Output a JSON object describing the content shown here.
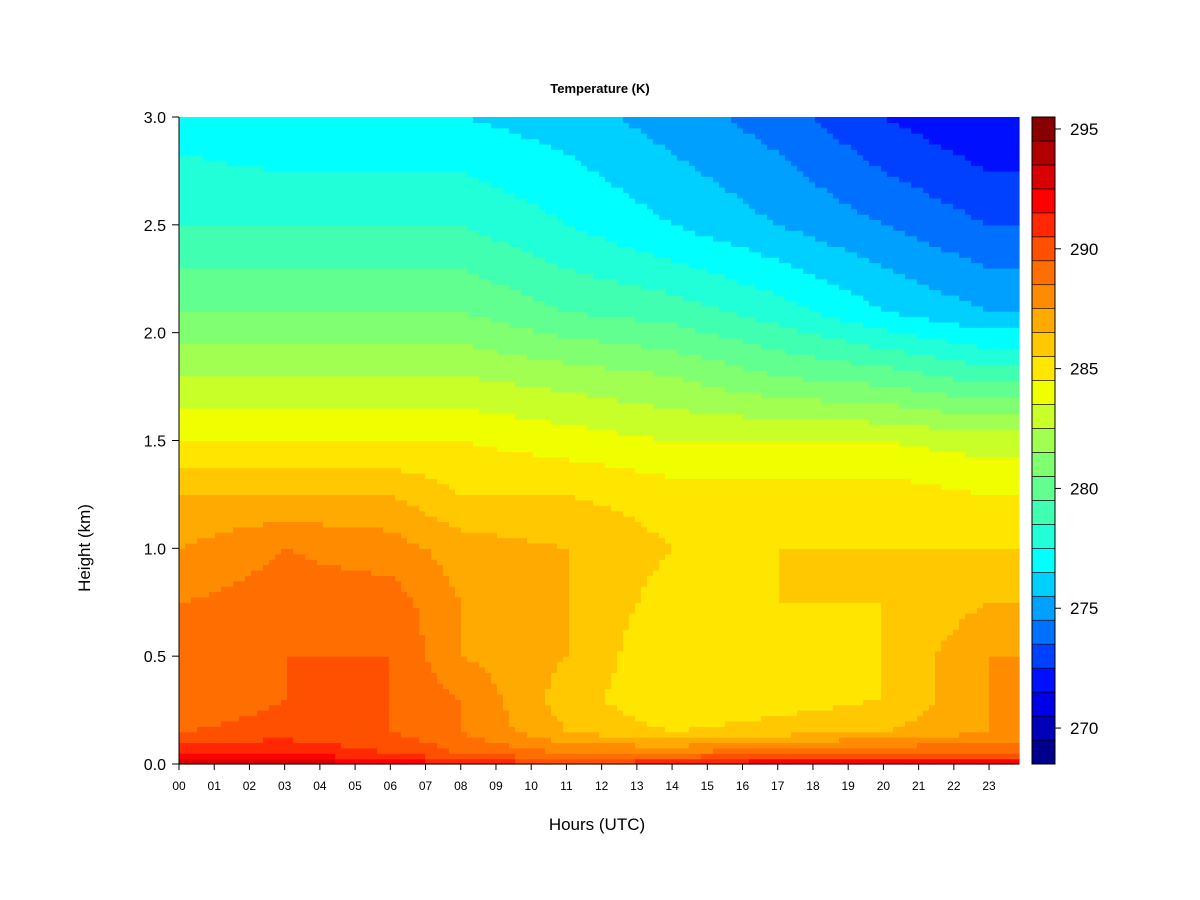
{
  "chart_data": {
    "type": "heatmap",
    "title": "Temperature (K)",
    "xlabel": "Hours (UTC)",
    "ylabel": "Height (km)",
    "x_ticks": [
      "00",
      "01",
      "02",
      "03",
      "04",
      "05",
      "06",
      "07",
      "08",
      "09",
      "10",
      "11",
      "12",
      "13",
      "14",
      "15",
      "16",
      "17",
      "18",
      "19",
      "20",
      "21",
      "22",
      "23"
    ],
    "xlim": [
      0,
      23.85
    ],
    "y_ticks": [
      "0.0",
      "0.5",
      "1.0",
      "1.5",
      "2.0",
      "2.5",
      "3.0"
    ],
    "ylim": [
      0,
      3.0
    ],
    "colorbar": {
      "ticks": [
        "270",
        "275",
        "280",
        "285",
        "290",
        "295"
      ],
      "range": [
        269,
        296
      ],
      "step": 1,
      "colors": [
        "#00008B",
        "#0000B8",
        "#0000E6",
        "#0010FF",
        "#0040FF",
        "#0070FF",
        "#00A0FF",
        "#00D0FF",
        "#00FFFF",
        "#20FFD8",
        "#40FFB0",
        "#60FF90",
        "#80FF70",
        "#A0FF50",
        "#C8FF28",
        "#F0FF00",
        "#FFE600",
        "#FFC800",
        "#FFAA00",
        "#FF8C00",
        "#FF6E00",
        "#FF5000",
        "#FF2800",
        "#FF0000",
        "#D80000",
        "#B00000",
        "#880000"
      ]
    },
    "grid": false,
    "legend": "colorbar-right",
    "profiles": [
      {
        "hour": 0,
        "levels": [
          294,
          292,
          290,
          289,
          289,
          289,
          288,
          287,
          285,
          283,
          281,
          279,
          277.5
        ]
      },
      {
        "hour": 3,
        "levels": [
          294,
          292,
          290.5,
          290,
          290,
          289.5,
          289,
          287,
          285,
          283,
          281,
          279,
          277
        ]
      },
      {
        "hour": 6,
        "levels": [
          293,
          291,
          290,
          290,
          290,
          289.5,
          288.5,
          287,
          285,
          283,
          281,
          279,
          277
        ]
      },
      {
        "hour": 8,
        "levels": [
          292,
          290,
          289,
          289,
          288,
          288,
          287.5,
          286,
          285,
          283,
          281,
          279,
          277
        ]
      },
      {
        "hour": 11,
        "levels": [
          291,
          289,
          287,
          286.5,
          287,
          287,
          287,
          286,
          284.5,
          282.5,
          280,
          278,
          276.5
        ]
      },
      {
        "hour": 14,
        "levels": [
          292,
          289,
          286,
          285,
          285,
          285.5,
          286,
          285.5,
          284,
          282,
          279.5,
          277,
          275.5
        ]
      },
      {
        "hour": 17,
        "levels": [
          293,
          290,
          286.5,
          285.5,
          285.5,
          286,
          286,
          285.5,
          284,
          281,
          278.5,
          276,
          274.5
        ]
      },
      {
        "hour": 20,
        "levels": [
          293,
          290,
          287,
          286,
          286,
          286,
          286,
          285.5,
          284,
          280.5,
          277,
          275,
          273
        ]
      },
      {
        "hour": 23,
        "levels": [
          293,
          290,
          288,
          288,
          288,
          287,
          286,
          285,
          283.5,
          279.5,
          276,
          274,
          272
        ]
      }
    ],
    "profile_heights": [
      0.0,
      0.05,
      0.15,
      0.3,
      0.5,
      0.75,
      1.0,
      1.25,
      1.5,
      1.8,
      2.1,
      2.5,
      3.0
    ]
  }
}
